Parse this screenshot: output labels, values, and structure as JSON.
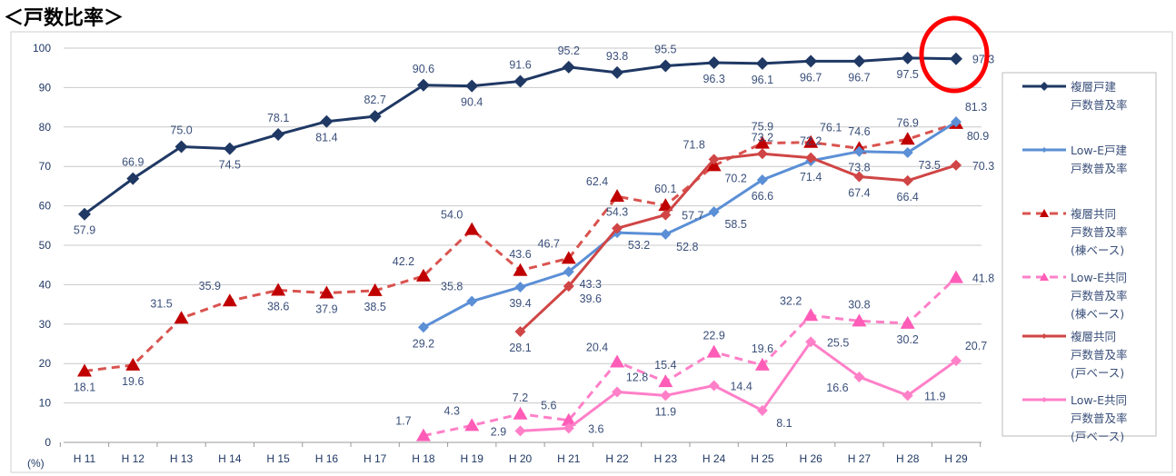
{
  "title": "＜戸数比率＞",
  "chart_data": {
    "type": "line",
    "ylabel": "(%)",
    "ylim": [
      0,
      100
    ],
    "yticks": [
      0,
      10,
      20,
      30,
      40,
      50,
      60,
      70,
      80,
      90,
      100
    ],
    "grid": true,
    "legend_position": "right",
    "categories": [
      "H 11",
      "H 12",
      "H 13",
      "H 14",
      "H 15",
      "H 16",
      "H 17",
      "H 18",
      "H 19",
      "H 20",
      "H 21",
      "H 22",
      "H 23",
      "H 24",
      "H 25",
      "H 26",
      "H 27",
      "H 28",
      "H 29"
    ],
    "series": [
      {
        "name": "複層戸建\n戸数普及率",
        "color": "#1f3864",
        "dash": false,
        "marker": "diamond",
        "values": [
          57.9,
          66.9,
          75.0,
          74.5,
          78.1,
          81.4,
          82.7,
          90.6,
          90.4,
          91.6,
          95.2,
          93.8,
          95.5,
          96.3,
          96.1,
          96.7,
          96.7,
          97.5,
          97.3
        ]
      },
      {
        "name": "Low-E戸建\n戸数普及率",
        "color": "#5b8fd6",
        "dash": false,
        "marker": "diamond",
        "values": [
          null,
          null,
          null,
          null,
          null,
          null,
          null,
          29.2,
          35.8,
          39.4,
          43.3,
          53.2,
          52.8,
          58.5,
          66.6,
          71.4,
          73.8,
          73.5,
          81.3
        ]
      },
      {
        "name": "複層共同\n戸数普及率\n(棟ベース)",
        "color": "#d9534f",
        "markerColor": "#c00000",
        "dash": true,
        "marker": "triangle",
        "values": [
          18.1,
          19.6,
          31.5,
          35.9,
          38.6,
          37.9,
          38.5,
          42.2,
          54.0,
          43.6,
          46.7,
          62.4,
          60.1,
          70.2,
          75.9,
          76.1,
          74.6,
          76.9,
          80.9
        ]
      },
      {
        "name": "Low-E共同\n戸数普及率\n(棟ベース)",
        "color": "#ff80c8",
        "markerColor": "#ff5cb8",
        "dash": true,
        "marker": "triangle",
        "values": [
          null,
          null,
          null,
          null,
          null,
          null,
          null,
          1.7,
          4.3,
          7.2,
          5.6,
          20.4,
          15.4,
          22.9,
          19.6,
          32.2,
          30.8,
          30.2,
          41.8
        ]
      },
      {
        "name": "複層共同\n戸数普及率\n(戸ベース)",
        "color": "#d04545",
        "dash": false,
        "marker": "diamond",
        "values": [
          null,
          null,
          null,
          null,
          null,
          null,
          null,
          null,
          null,
          28.1,
          39.6,
          54.3,
          57.7,
          71.8,
          73.2,
          72.2,
          67.4,
          66.4,
          70.3
        ]
      },
      {
        "name": "Low-E共同\n戸数普及率\n(戸ベース)",
        "color": "#ff80c8",
        "dash": false,
        "marker": "diamond",
        "values": [
          null,
          null,
          null,
          null,
          null,
          null,
          null,
          null,
          null,
          2.9,
          3.6,
          12.8,
          11.9,
          14.4,
          8.1,
          25.5,
          16.6,
          11.9,
          20.7
        ]
      }
    ],
    "highlight": {
      "category": "H 29",
      "series": "複層戸建\n戸数普及率",
      "color": "#ff0000"
    }
  }
}
